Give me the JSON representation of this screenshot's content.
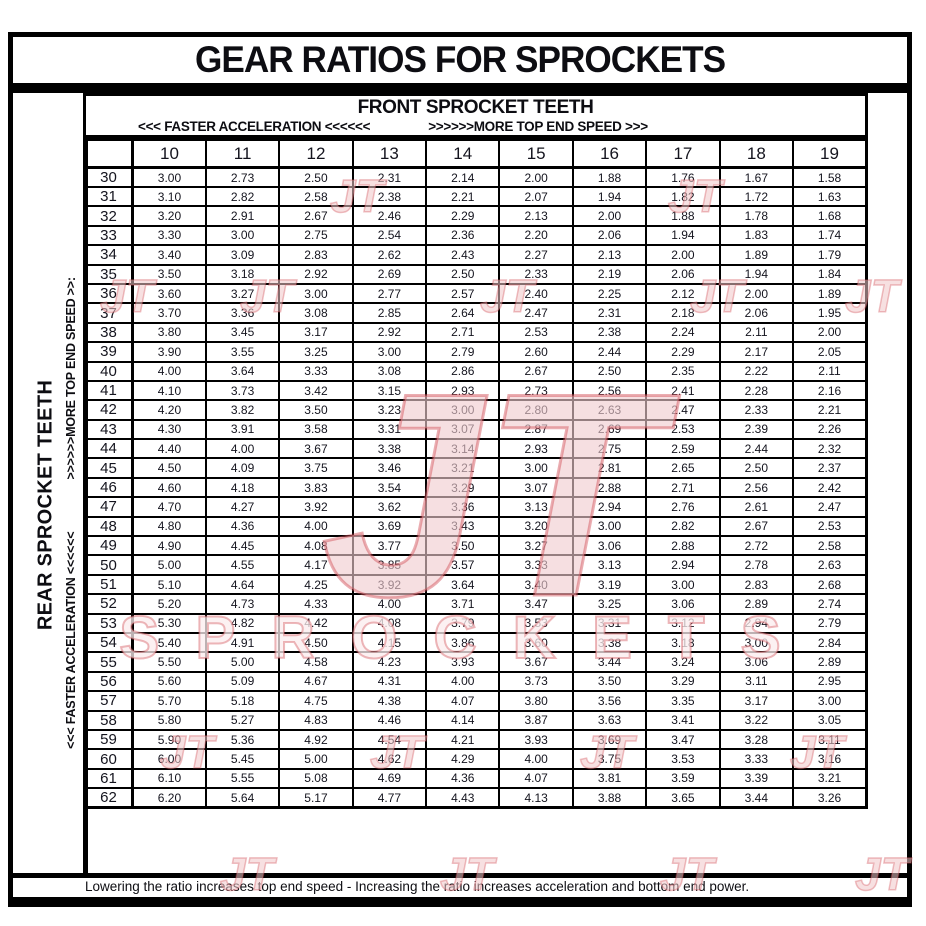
{
  "title": "GEAR RATIOS FOR SPROCKETS",
  "front_header": {
    "title": "FRONT SPROCKET TEETH",
    "hint_acceleration": "<<< FASTER  ACCELERATION <<<<<<",
    "hint_speed": ">>>>>>MORE TOP END SPEED >>>"
  },
  "left_panel": {
    "title": "REAR SPROCKET TEETH",
    "hint_acceleration": "<<< FASTER  ACCELERATION <<<<<<",
    "hint_speed": ">>>>>>MORE TOP END SPEED >>:"
  },
  "footer_note": "Lowering the ratio increases top end speed - Increasing the ratio increases acceleration and bottom end power.",
  "watermark": {
    "monogram": "JT",
    "word": "SPROCKETS",
    "fill_color": "#f1cbce",
    "stroke_color": "#d04a52"
  },
  "chart_data": {
    "type": "table",
    "title": "GEAR RATIOS FOR SPROCKETS",
    "columns_axis_label": "FRONT SPROCKET TEETH",
    "rows_axis_label": "REAR SPROCKET TEETH",
    "corner": "",
    "columns": [
      "10",
      "11",
      "12",
      "13",
      "14",
      "15",
      "16",
      "17",
      "18",
      "19"
    ],
    "rows": [
      {
        "rear": "30",
        "values": [
          "3.00",
          "2.73",
          "2.50",
          "2.31",
          "2.14",
          "2.00",
          "1.88",
          "1.76",
          "1.67",
          "1.58"
        ]
      },
      {
        "rear": "31",
        "values": [
          "3.10",
          "2.82",
          "2.58",
          "2.38",
          "2.21",
          "2.07",
          "1.94",
          "1.82",
          "1.72",
          "1.63"
        ]
      },
      {
        "rear": "32",
        "values": [
          "3.20",
          "2.91",
          "2.67",
          "2.46",
          "2.29",
          "2.13",
          "2.00",
          "1.88",
          "1.78",
          "1.68"
        ]
      },
      {
        "rear": "33",
        "values": [
          "3.30",
          "3.00",
          "2.75",
          "2.54",
          "2.36",
          "2.20",
          "2.06",
          "1.94",
          "1.83",
          "1.74"
        ]
      },
      {
        "rear": "34",
        "values": [
          "3.40",
          "3.09",
          "2.83",
          "2.62",
          "2.43",
          "2.27",
          "2.13",
          "2.00",
          "1.89",
          "1.79"
        ]
      },
      {
        "rear": "35",
        "values": [
          "3.50",
          "3.18",
          "2.92",
          "2.69",
          "2.50",
          "2.33",
          "2.19",
          "2.06",
          "1.94",
          "1.84"
        ]
      },
      {
        "rear": "36",
        "values": [
          "3.60",
          "3.27",
          "3.00",
          "2.77",
          "2.57",
          "2.40",
          "2.25",
          "2.12",
          "2.00",
          "1.89"
        ]
      },
      {
        "rear": "37",
        "values": [
          "3.70",
          "3.36",
          "3.08",
          "2.85",
          "2.64",
          "2.47",
          "2.31",
          "2.18",
          "2.06",
          "1.95"
        ]
      },
      {
        "rear": "38",
        "values": [
          "3.80",
          "3.45",
          "3.17",
          "2.92",
          "2.71",
          "2.53",
          "2.38",
          "2.24",
          "2.11",
          "2.00"
        ]
      },
      {
        "rear": "39",
        "values": [
          "3.90",
          "3.55",
          "3.25",
          "3.00",
          "2.79",
          "2.60",
          "2.44",
          "2.29",
          "2.17",
          "2.05"
        ]
      },
      {
        "rear": "40",
        "values": [
          "4.00",
          "3.64",
          "3.33",
          "3.08",
          "2.86",
          "2.67",
          "2.50",
          "2.35",
          "2.22",
          "2.11"
        ]
      },
      {
        "rear": "41",
        "values": [
          "4.10",
          "3.73",
          "3.42",
          "3.15",
          "2.93",
          "2.73",
          "2.56",
          "2.41",
          "2.28",
          "2.16"
        ]
      },
      {
        "rear": "42",
        "values": [
          "4.20",
          "3.82",
          "3.50",
          "3.23",
          "3.00",
          "2.80",
          "2.63",
          "2.47",
          "2.33",
          "2.21"
        ]
      },
      {
        "rear": "43",
        "values": [
          "4.30",
          "3.91",
          "3.58",
          "3.31",
          "3.07",
          "2.87",
          "2.69",
          "2.53",
          "2.39",
          "2.26"
        ]
      },
      {
        "rear": "44",
        "values": [
          "4.40",
          "4.00",
          "3.67",
          "3.38",
          "3.14",
          "2.93",
          "2.75",
          "2.59",
          "2.44",
          "2.32"
        ]
      },
      {
        "rear": "45",
        "values": [
          "4.50",
          "4.09",
          "3.75",
          "3.46",
          "3.21",
          "3.00",
          "2.81",
          "2.65",
          "2.50",
          "2.37"
        ]
      },
      {
        "rear": "46",
        "values": [
          "4.60",
          "4.18",
          "3.83",
          "3.54",
          "3.29",
          "3.07",
          "2.88",
          "2.71",
          "2.56",
          "2.42"
        ]
      },
      {
        "rear": "47",
        "values": [
          "4.70",
          "4.27",
          "3.92",
          "3.62",
          "3.36",
          "3.13",
          "2.94",
          "2.76",
          "2.61",
          "2.47"
        ]
      },
      {
        "rear": "48",
        "values": [
          "4.80",
          "4.36",
          "4.00",
          "3.69",
          "3.43",
          "3.20",
          "3.00",
          "2.82",
          "2.67",
          "2.53"
        ]
      },
      {
        "rear": "49",
        "values": [
          "4.90",
          "4.45",
          "4.08",
          "3.77",
          "3.50",
          "3.27",
          "3.06",
          "2.88",
          "2.72",
          "2.58"
        ]
      },
      {
        "rear": "50",
        "values": [
          "5.00",
          "4.55",
          "4.17",
          "3.85",
          "3.57",
          "3.33",
          "3.13",
          "2.94",
          "2.78",
          "2.63"
        ]
      },
      {
        "rear": "51",
        "values": [
          "5.10",
          "4.64",
          "4.25",
          "3.92",
          "3.64",
          "3.40",
          "3.19",
          "3.00",
          "2.83",
          "2.68"
        ]
      },
      {
        "rear": "52",
        "values": [
          "5.20",
          "4.73",
          "4.33",
          "4.00",
          "3.71",
          "3.47",
          "3.25",
          "3.06",
          "2.89",
          "2.74"
        ]
      },
      {
        "rear": "53",
        "values": [
          "5.30",
          "4.82",
          "4.42",
          "4.08",
          "3.79",
          "3.53",
          "3.31",
          "3.12",
          "2.94",
          "2.79"
        ]
      },
      {
        "rear": "54",
        "values": [
          "5.40",
          "4.91",
          "4.50",
          "4.15",
          "3.86",
          "3.60",
          "3.38",
          "3.18",
          "3.00",
          "2.84"
        ]
      },
      {
        "rear": "55",
        "values": [
          "5.50",
          "5.00",
          "4.58",
          "4.23",
          "3.93",
          "3.67",
          "3.44",
          "3.24",
          "3.06",
          "2.89"
        ]
      },
      {
        "rear": "56",
        "values": [
          "5.60",
          "5.09",
          "4.67",
          "4.31",
          "4.00",
          "3.73",
          "3.50",
          "3.29",
          "3.11",
          "2.95"
        ]
      },
      {
        "rear": "57",
        "values": [
          "5.70",
          "5.18",
          "4.75",
          "4.38",
          "4.07",
          "3.80",
          "3.56",
          "3.35",
          "3.17",
          "3.00"
        ]
      },
      {
        "rear": "58",
        "values": [
          "5.80",
          "5.27",
          "4.83",
          "4.46",
          "4.14",
          "3.87",
          "3.63",
          "3.41",
          "3.22",
          "3.05"
        ]
      },
      {
        "rear": "59",
        "values": [
          "5.90",
          "5.36",
          "4.92",
          "4.54",
          "4.21",
          "3.93",
          "3.69",
          "3.47",
          "3.28",
          "3.11"
        ]
      },
      {
        "rear": "60",
        "values": [
          "6.00",
          "5.45",
          "5.00",
          "4.62",
          "4.29",
          "4.00",
          "3.75",
          "3.53",
          "3.33",
          "3.16"
        ]
      },
      {
        "rear": "61",
        "values": [
          "6.10",
          "5.55",
          "5.08",
          "4.69",
          "4.36",
          "4.07",
          "3.81",
          "3.59",
          "3.39",
          "3.21"
        ]
      },
      {
        "rear": "62",
        "values": [
          "6.20",
          "5.64",
          "5.17",
          "4.77",
          "4.43",
          "4.13",
          "3.88",
          "3.65",
          "3.44",
          "3.26"
        ]
      }
    ]
  }
}
